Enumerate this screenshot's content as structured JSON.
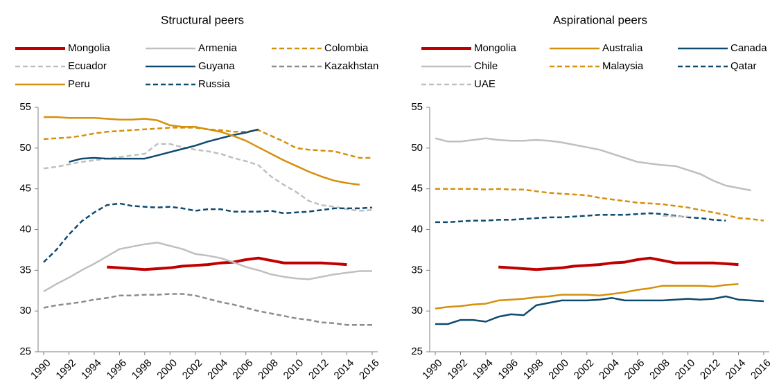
{
  "chart_data": [
    {
      "type": "line",
      "title": "Structural peers",
      "x": [
        1990,
        1991,
        1992,
        1993,
        1994,
        1995,
        1996,
        1997,
        1998,
        1999,
        2000,
        2001,
        2002,
        2003,
        2004,
        2005,
        2006,
        2007,
        2008,
        2009,
        2010,
        2011,
        2012,
        2013,
        2014,
        2015,
        2016
      ],
      "xlim": [
        1990,
        2016
      ],
      "xticks": [
        1990,
        1992,
        1994,
        1996,
        1998,
        2000,
        2002,
        2004,
        2006,
        2008,
        2010,
        2012,
        2014,
        2016
      ],
      "ylim": [
        25,
        55
      ],
      "yticks": [
        25,
        30,
        35,
        40,
        45,
        50,
        55
      ],
      "series": [
        {
          "name": "Mongolia",
          "color": "#c00000",
          "linestyle": "solid",
          "linewidth": 4,
          "values": [
            null,
            null,
            null,
            null,
            null,
            35.4,
            35.3,
            35.2,
            35.1,
            35.2,
            35.3,
            35.5,
            35.6,
            35.7,
            35.9,
            36.0,
            36.3,
            36.5,
            36.2,
            35.9,
            35.9,
            35.9,
            35.9,
            35.8,
            35.7,
            null,
            null
          ]
        },
        {
          "name": "Armenia",
          "color": "#bfbfbf",
          "linestyle": "solid",
          "linewidth": 2.5,
          "values": [
            32.4,
            33.3,
            34.1,
            35.0,
            35.8,
            36.7,
            37.6,
            37.9,
            38.2,
            38.4,
            38.0,
            37.6,
            37.0,
            36.8,
            36.5,
            36.0,
            35.4,
            35.0,
            34.5,
            34.2,
            34.0,
            33.9,
            34.2,
            34.5,
            34.7,
            34.9,
            34.9
          ]
        },
        {
          "name": "Colombia",
          "color": "#d68f0a",
          "linestyle": "dashed",
          "linewidth": 2.5,
          "values": [
            51.1,
            51.2,
            51.3,
            51.5,
            51.8,
            52.0,
            52.1,
            52.2,
            52.3,
            52.4,
            52.5,
            52.5,
            52.5,
            52.3,
            52.2,
            52.0,
            52.0,
            52.2,
            51.5,
            50.8,
            50.0,
            49.8,
            49.7,
            49.6,
            49.2,
            48.8,
            48.8
          ]
        },
        {
          "name": "Ecuador",
          "color": "#bfbfbf",
          "linestyle": "dashed",
          "linewidth": 2.5,
          "values": [
            47.5,
            47.7,
            48.0,
            48.3,
            48.5,
            48.7,
            48.9,
            49.1,
            49.3,
            50.5,
            50.5,
            50.1,
            49.8,
            49.6,
            49.3,
            48.8,
            48.4,
            47.9,
            46.5,
            45.5,
            44.6,
            43.5,
            43.0,
            42.8,
            42.5,
            42.3,
            42.4
          ]
        },
        {
          "name": "Guyana",
          "color": "#0e4a6e",
          "linestyle": "solid",
          "linewidth": 2.5,
          "values": [
            null,
            null,
            48.3,
            48.7,
            48.8,
            48.7,
            48.7,
            48.7,
            48.7,
            49.1,
            49.5,
            49.9,
            50.3,
            50.8,
            51.2,
            51.6,
            51.9,
            52.3,
            null,
            null,
            null,
            null,
            null,
            null,
            null,
            null,
            null
          ]
        },
        {
          "name": "Kazakhstan",
          "color": "#8c8c8c",
          "linestyle": "dashed",
          "linewidth": 2.5,
          "values": [
            30.4,
            30.7,
            30.9,
            31.1,
            31.4,
            31.6,
            31.9,
            31.9,
            32.0,
            32.0,
            32.1,
            32.1,
            31.9,
            31.5,
            31.1,
            30.8,
            30.4,
            30.0,
            29.7,
            29.4,
            29.1,
            28.9,
            28.6,
            28.5,
            28.3,
            28.3,
            28.3
          ]
        },
        {
          "name": "Peru",
          "color": "#d68f0a",
          "linestyle": "solid",
          "linewidth": 2.5,
          "values": [
            53.8,
            53.8,
            53.7,
            53.7,
            53.7,
            53.6,
            53.5,
            53.5,
            53.6,
            53.4,
            52.8,
            52.6,
            52.6,
            52.3,
            52.0,
            51.5,
            50.9,
            50.1,
            49.3,
            48.5,
            47.8,
            47.1,
            46.5,
            46.0,
            45.7,
            45.5,
            null
          ]
        },
        {
          "name": "Russia",
          "color": "#0e4a6e",
          "linestyle": "dashed",
          "linewidth": 2.5,
          "values": [
            36.0,
            37.5,
            39.4,
            41.0,
            42.1,
            43.0,
            43.2,
            42.9,
            42.8,
            42.7,
            42.8,
            42.6,
            42.3,
            42.5,
            42.5,
            42.2,
            42.2,
            42.2,
            42.3,
            42.0,
            42.1,
            42.2,
            42.4,
            42.6,
            42.6,
            42.6,
            42.7
          ]
        }
      ]
    },
    {
      "type": "line",
      "title": "Aspirational peers",
      "x": [
        1990,
        1991,
        1992,
        1993,
        1994,
        1995,
        1996,
        1997,
        1998,
        1999,
        2000,
        2001,
        2002,
        2003,
        2004,
        2005,
        2006,
        2007,
        2008,
        2009,
        2010,
        2011,
        2012,
        2013,
        2014,
        2015,
        2016
      ],
      "xlim": [
        1990,
        2016
      ],
      "xticks": [
        1990,
        1992,
        1994,
        1996,
        1998,
        2000,
        2002,
        2004,
        2006,
        2008,
        2010,
        2012,
        2014,
        2016
      ],
      "ylim": [
        25,
        55
      ],
      "yticks": [
        25,
        30,
        35,
        40,
        45,
        50,
        55
      ],
      "series": [
        {
          "name": "Mongolia",
          "color": "#c00000",
          "linestyle": "solid",
          "linewidth": 4,
          "values": [
            null,
            null,
            null,
            null,
            null,
            35.4,
            35.3,
            35.2,
            35.1,
            35.2,
            35.3,
            35.5,
            35.6,
            35.7,
            35.9,
            36.0,
            36.3,
            36.5,
            36.2,
            35.9,
            35.9,
            35.9,
            35.9,
            35.8,
            35.7,
            null,
            null
          ]
        },
        {
          "name": "Australia",
          "color": "#d68f0a",
          "linestyle": "solid",
          "linewidth": 2.5,
          "values": [
            30.3,
            30.5,
            30.6,
            30.8,
            30.9,
            31.3,
            31.4,
            31.5,
            31.7,
            31.8,
            32.0,
            32.0,
            32.0,
            31.9,
            32.1,
            32.3,
            32.6,
            32.8,
            33.1,
            33.1,
            33.1,
            33.1,
            33.0,
            33.2,
            33.3,
            null,
            null
          ]
        },
        {
          "name": "Canada",
          "color": "#0e4a6e",
          "linestyle": "solid",
          "linewidth": 2.5,
          "values": [
            28.4,
            28.4,
            28.9,
            28.9,
            28.7,
            29.3,
            29.6,
            29.5,
            30.7,
            31.0,
            31.3,
            31.3,
            31.3,
            31.4,
            31.6,
            31.3,
            31.3,
            31.3,
            31.3,
            31.4,
            31.5,
            31.4,
            31.5,
            31.8,
            31.4,
            31.3,
            31.2
          ]
        },
        {
          "name": "Chile",
          "color": "#bfbfbf",
          "linestyle": "solid",
          "linewidth": 2.5,
          "values": [
            51.2,
            50.8,
            50.8,
            51.0,
            51.2,
            51.0,
            50.9,
            50.9,
            51.0,
            50.9,
            50.7,
            50.4,
            50.1,
            49.8,
            49.3,
            48.8,
            48.3,
            48.1,
            47.9,
            47.8,
            47.3,
            46.8,
            46.0,
            45.4,
            45.1,
            44.8,
            null
          ]
        },
        {
          "name": "Malaysia",
          "color": "#d68f0a",
          "linestyle": "dashed",
          "linewidth": 2.5,
          "values": [
            45.0,
            45.0,
            45.0,
            45.0,
            44.9,
            45.0,
            44.9,
            44.9,
            44.7,
            44.5,
            44.4,
            44.3,
            44.2,
            43.9,
            43.7,
            43.5,
            43.3,
            43.2,
            43.1,
            42.9,
            42.7,
            42.4,
            42.1,
            41.8,
            41.4,
            41.3,
            41.1
          ]
        },
        {
          "name": "Qatar",
          "color": "#0e4a6e",
          "linestyle": "dashed",
          "linewidth": 2.5,
          "values": [
            40.9,
            40.9,
            41.0,
            41.1,
            41.1,
            41.2,
            41.2,
            41.3,
            41.4,
            41.5,
            41.5,
            41.6,
            41.7,
            41.8,
            41.8,
            41.8,
            41.9,
            42.0,
            41.9,
            41.7,
            41.5,
            41.4,
            41.2,
            41.1,
            null,
            null,
            null
          ]
        },
        {
          "name": "UAE",
          "color": "#bfbfbf",
          "linestyle": "dashed",
          "linewidth": 2.5,
          "values": [
            null,
            null,
            null,
            null,
            null,
            null,
            null,
            null,
            null,
            null,
            null,
            null,
            null,
            null,
            null,
            null,
            null,
            null,
            41.7,
            41.6,
            41.6,
            null,
            null,
            null,
            null,
            null,
            null
          ]
        }
      ]
    }
  ]
}
